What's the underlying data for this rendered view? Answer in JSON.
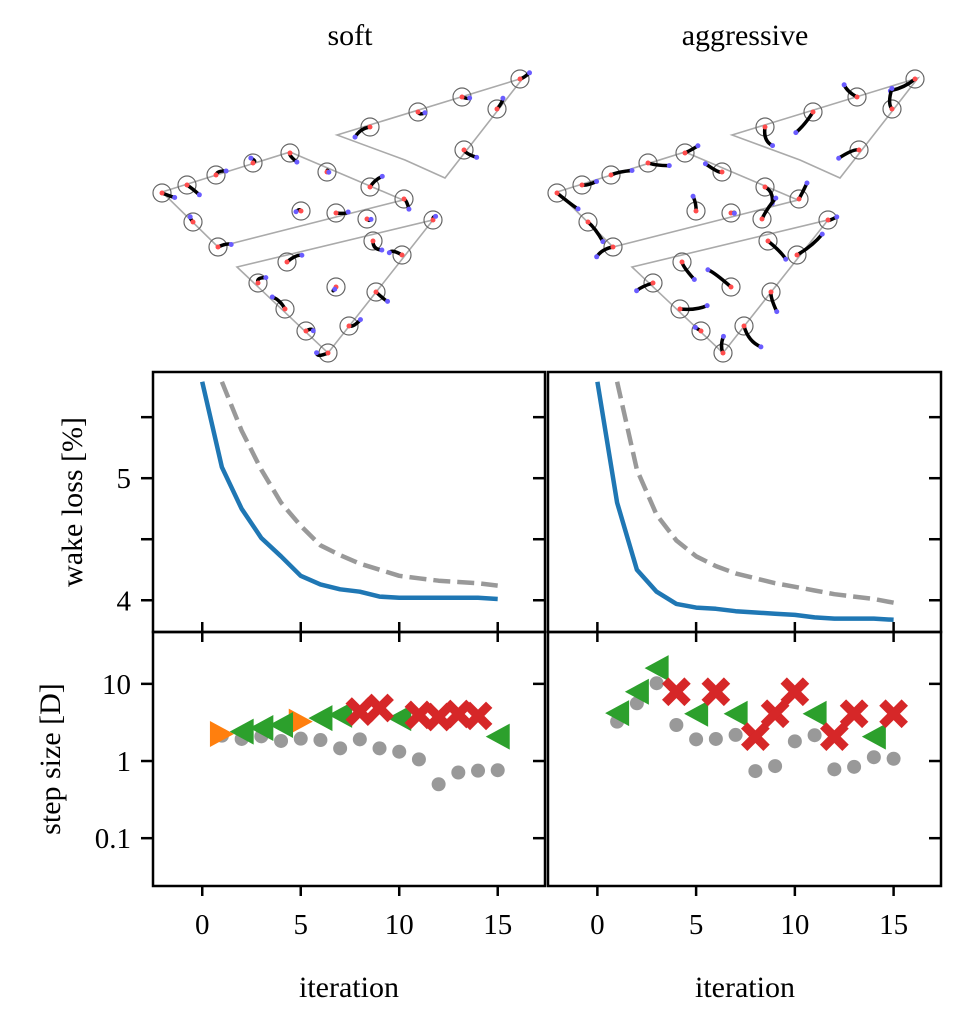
{
  "titles": [
    "soft",
    "aggressive"
  ],
  "colors": {
    "blue": "#1f77b4",
    "gray": "#999999",
    "green": "#2ca02c",
    "orange": "#ff7f0e",
    "red": "#d62728"
  },
  "chart_data": [
    {
      "type": "line",
      "panel": "soft",
      "ylabel": "wake loss [%]",
      "xlim": [
        -2.5,
        17.4
      ],
      "ylim": [
        3.74,
        5.87
      ],
      "yticks": [
        "4",
        "5"
      ],
      "series": [
        {
          "name": "solid",
          "color": "#1f77b4",
          "style": "solid",
          "x": [
            0,
            1,
            2,
            3,
            4,
            5,
            6,
            7,
            8,
            9,
            10,
            11,
            12,
            13,
            14,
            15
          ],
          "y": [
            5.79,
            5.09,
            4.75,
            4.51,
            4.36,
            4.2,
            4.13,
            4.09,
            4.07,
            4.03,
            4.02,
            4.02,
            4.02,
            4.02,
            4.02,
            4.01
          ]
        },
        {
          "name": "dashed",
          "color": "#999999",
          "style": "dashed",
          "x": [
            1,
            2,
            3,
            4,
            5,
            6,
            7,
            8,
            9,
            10,
            11,
            12,
            13,
            14,
            15
          ],
          "y": [
            5.79,
            5.39,
            5.07,
            4.8,
            4.61,
            4.45,
            4.37,
            4.3,
            4.25,
            4.2,
            4.18,
            4.16,
            4.15,
            4.14,
            4.12
          ]
        }
      ]
    },
    {
      "type": "line",
      "panel": "aggressive",
      "xlim": [
        -2.5,
        17.4
      ],
      "ylim": [
        3.74,
        5.87
      ],
      "series": [
        {
          "name": "solid",
          "color": "#1f77b4",
          "style": "solid",
          "x": [
            0,
            1,
            2,
            3,
            4,
            5,
            6,
            7,
            8,
            9,
            10,
            11,
            12,
            13,
            14,
            15
          ],
          "y": [
            5.79,
            4.8,
            4.25,
            4.07,
            3.97,
            3.94,
            3.93,
            3.91,
            3.9,
            3.89,
            3.88,
            3.86,
            3.85,
            3.85,
            3.85,
            3.84
          ]
        },
        {
          "name": "dashed",
          "color": "#999999",
          "style": "dashed",
          "x": [
            1,
            2,
            3,
            4,
            5,
            6,
            7,
            8,
            9,
            10,
            11,
            12,
            13,
            14,
            15
          ],
          "y": [
            5.79,
            5.07,
            4.7,
            4.49,
            4.36,
            4.28,
            4.22,
            4.18,
            4.14,
            4.11,
            4.08,
            4.05,
            4.03,
            4.01,
            3.98
          ]
        }
      ]
    },
    {
      "type": "scatter",
      "panel": "soft",
      "ylabel": "step size [D]",
      "xlabel": "iteration",
      "yscale": "log",
      "xlim": [
        -2.5,
        17.4
      ],
      "ylim": [
        0.024,
        47
      ],
      "yticks": [
        "0.1",
        "1",
        "10"
      ],
      "xticks": [
        "0",
        "5",
        "10",
        "15"
      ],
      "series": [
        {
          "name": "gray",
          "marker": "circle",
          "color": "#999999",
          "x": [
            1,
            2,
            3,
            4,
            5,
            6,
            7,
            8,
            9,
            10,
            11,
            12,
            13,
            14,
            15
          ],
          "y": [
            2.13,
            1.93,
            2.09,
            1.82,
            1.95,
            1.87,
            1.46,
            1.91,
            1.46,
            1.32,
            1.05,
            0.5,
            0.71,
            0.75,
            0.76
          ]
        },
        {
          "name": "orange",
          "marker": "triangle-right",
          "color": "#ff7f0e",
          "x": [
            1,
            5
          ],
          "y": [
            2.24,
            3.24
          ]
        },
        {
          "name": "green",
          "marker": "triangle-left",
          "color": "#2ca02c",
          "x": [
            2,
            3,
            4,
            6,
            7,
            10,
            15
          ],
          "y": [
            2.4,
            2.68,
            2.93,
            3.6,
            3.96,
            3.6,
            2.07
          ]
        },
        {
          "name": "red",
          "marker": "x",
          "color": "#d62728",
          "x": [
            8,
            9,
            11,
            12,
            13,
            14
          ],
          "y": [
            4.37,
            4.87,
            3.96,
            3.72,
            4.07,
            3.84
          ]
        }
      ]
    },
    {
      "type": "scatter",
      "panel": "aggressive",
      "xlabel": "iteration",
      "yscale": "log",
      "xlim": [
        -2.5,
        17.4
      ],
      "ylim": [
        0.024,
        47
      ],
      "xticks": [
        "0",
        "5",
        "10",
        "15"
      ],
      "series": [
        {
          "name": "gray",
          "marker": "circle",
          "color": "#999999",
          "x": [
            1,
            2,
            3,
            4,
            5,
            6,
            7,
            8,
            9,
            10,
            11,
            12,
            13,
            14,
            15
          ],
          "y": [
            3.24,
            5.6,
            10.2,
            2.93,
            1.91,
            1.93,
            2.18,
            0.74,
            0.86,
            1.8,
            2.16,
            0.78,
            0.84,
            1.12,
            1.07
          ]
        },
        {
          "name": "green",
          "marker": "triangle-left",
          "color": "#2ca02c",
          "x": [
            1,
            2,
            3,
            5,
            7,
            11,
            14
          ],
          "y": [
            4.17,
            7.9,
            16,
            4.1,
            4.1,
            4.1,
            2.07
          ]
        },
        {
          "name": "red",
          "marker": "x",
          "color": "#d62728",
          "x": [
            4,
            6,
            8,
            9,
            10,
            12,
            13,
            15
          ],
          "y": [
            7.9,
            7.9,
            2.07,
            4.1,
            7.9,
            2.07,
            4.1,
            4.1
          ]
        }
      ]
    }
  ]
}
